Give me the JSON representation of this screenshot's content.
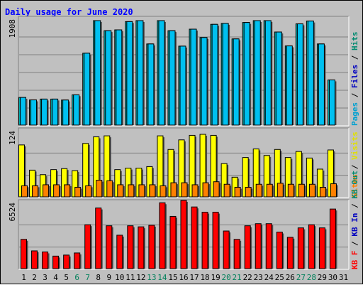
{
  "chart_data": [
    {
      "type": "bar",
      "title": "Daily usage for June 2020",
      "panel": "top",
      "ymax_label": "1908",
      "legend": [
        {
          "text": "Pages",
          "color": "#00a0d0"
        },
        {
          "text": "Files",
          "color": "#0000c0"
        },
        {
          "text": "Hits",
          "color": "#008a70"
        }
      ],
      "categories": [
        "1",
        "2",
        "3",
        "4",
        "5",
        "6",
        "7",
        "8",
        "9",
        "10",
        "11",
        "12",
        "13",
        "14",
        "15",
        "16",
        "17",
        "18",
        "19",
        "20",
        "21",
        "22",
        "23",
        "24",
        "25",
        "26",
        "27",
        "28",
        "29",
        "30",
        "31"
      ],
      "series": [
        {
          "name": "Hits",
          "color": "#00b0b0",
          "values": [
            505,
            460,
            475,
            475,
            458,
            553,
            1313,
            1908,
            1724,
            1739,
            1890,
            1908,
            1482,
            1908,
            1724,
            1442,
            1752,
            1599,
            1840,
            1857,
            1574,
            1874,
            1908,
            1908,
            1700,
            1446,
            1849,
            1900,
            1482,
            825,
            null
          ]
        },
        {
          "name": "Files",
          "color": "#0000ff",
          "values": [
            0,
            0,
            0,
            0,
            0,
            0,
            0,
            0,
            0,
            0,
            0,
            0,
            0,
            0,
            0,
            0,
            0,
            0,
            0,
            0,
            0,
            0,
            0,
            0,
            0,
            0,
            0,
            0,
            0,
            0,
            null
          ]
        },
        {
          "name": "Pages",
          "color": "#00c0f0",
          "values": [
            505,
            460,
            475,
            475,
            458,
            553,
            1313,
            1908,
            1724,
            1739,
            1890,
            1908,
            1482,
            1908,
            1724,
            1442,
            1752,
            1599,
            1840,
            1857,
            1574,
            1874,
            1908,
            1908,
            1700,
            1446,
            1849,
            1900,
            1482,
            825,
            null
          ]
        }
      ]
    },
    {
      "type": "bar",
      "panel": "middle",
      "ymax_label": "124",
      "legend": [
        {
          "text": "Sites",
          "color": "#ff8000"
        },
        {
          "text": "Visits",
          "color": "#e0e000"
        }
      ],
      "categories": [
        "1",
        "2",
        "3",
        "4",
        "5",
        "6",
        "7",
        "8",
        "9",
        "10",
        "11",
        "12",
        "13",
        "14",
        "15",
        "16",
        "17",
        "18",
        "19",
        "20",
        "21",
        "22",
        "23",
        "24",
        "25",
        "26",
        "27",
        "28",
        "29",
        "30",
        "31"
      ],
      "series": [
        {
          "name": "Visits",
          "color": "#ffff00",
          "values": [
            103,
            53,
            44,
            54,
            56,
            52,
            106,
            119,
            121,
            54,
            57,
            57,
            60,
            121,
            94,
            113,
            122,
            124,
            122,
            66,
            39,
            78,
            95,
            82,
            94,
            78,
            90,
            77,
            55,
            93,
            null
          ]
        },
        {
          "name": "Sites",
          "color": "#ff8000",
          "values": [
            22,
            22,
            24,
            24,
            24,
            19,
            22,
            33,
            32,
            24,
            24,
            24,
            24,
            22,
            28,
            28,
            24,
            28,
            30,
            25,
            19,
            19,
            25,
            25,
            27,
            25,
            25,
            25,
            19,
            26,
            null
          ]
        }
      ]
    },
    {
      "type": "bar",
      "panel": "bottom",
      "ymax_label": "6524",
      "legend": [
        {
          "text": "KB F",
          "color": "#ff0000"
        },
        {
          "text": "KB In",
          "color": "#0000c0"
        },
        {
          "text": "KB Out",
          "color": "#008a70"
        }
      ],
      "categories": [
        "1",
        "2",
        "3",
        "4",
        "5",
        "6",
        "7",
        "8",
        "9",
        "10",
        "11",
        "12",
        "13",
        "14",
        "15",
        "16",
        "17",
        "18",
        "19",
        "20",
        "21",
        "22",
        "23",
        "24",
        "25",
        "26",
        "27",
        "28",
        "29",
        "30",
        "31"
      ],
      "series": [
        {
          "name": "KB F",
          "color": "#ff0000",
          "values": [
            2800,
            1700,
            1600,
            1200,
            1300,
            1500,
            4200,
            5800,
            4100,
            3200,
            4100,
            4000,
            4150,
            6300,
            5000,
            6524,
            5900,
            5400,
            5400,
            3600,
            2800,
            4100,
            4300,
            4300,
            3500,
            3000,
            3900,
            4200,
            3900,
            5700,
            null
          ]
        }
      ]
    }
  ],
  "x_axis": {
    "labels": [
      "1",
      "2",
      "3",
      "4",
      "5",
      "6",
      "7",
      "8",
      "9",
      "10",
      "11",
      "12",
      "13",
      "14",
      "15",
      "16",
      "17",
      "18",
      "19",
      "20",
      "21",
      "22",
      "23",
      "24",
      "25",
      "26",
      "27",
      "28",
      "29",
      "30",
      "31"
    ],
    "weekend_days": [
      "6",
      "7",
      "13",
      "14",
      "20",
      "21",
      "27",
      "28"
    ],
    "weekday_color": "#000000",
    "weekend_color": "#00805a"
  },
  "colors": {
    "background": "#c0c0c0",
    "grid": "#808080",
    "title": "#0000ff"
  }
}
